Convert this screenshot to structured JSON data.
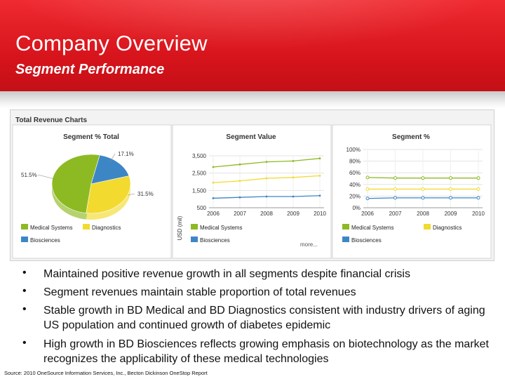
{
  "header": {
    "title": "Company Overview",
    "subtitle": "Segment Performance"
  },
  "panel": {
    "title": "Total Revenue Charts"
  },
  "colors": {
    "medical": "#8dba22",
    "diagnostics": "#f2da2e",
    "biosciences": "#3d86c6",
    "banner": "#d8141c"
  },
  "chart_data": [
    {
      "type": "pie",
      "title": "Segment % Total",
      "labels": [
        "Medical Systems",
        "Diagnostics",
        "Biosciences"
      ],
      "values": [
        51.5,
        31.5,
        17.1
      ],
      "value_labels": [
        "51.5%",
        "31.5%",
        "17.1%"
      ],
      "legend": [
        "Medical Systems",
        "Diagnostics",
        "Biosciences"
      ]
    },
    {
      "type": "line",
      "title": "Segment Value",
      "x": [
        "2006",
        "2007",
        "2008",
        "2009",
        "2010"
      ],
      "ylabel": "USD (mil)",
      "ylim": [
        500,
        3500
      ],
      "yticks": [
        "3,500",
        "2,500",
        "1,500",
        "500"
      ],
      "series": [
        {
          "name": "Medical Systems",
          "values": [
            2850,
            3000,
            3150,
            3200,
            3350
          ]
        },
        {
          "name": "Diagnostics",
          "values": [
            1950,
            2050,
            2200,
            2250,
            2350
          ]
        },
        {
          "name": "Biosciences",
          "values": [
            1050,
            1100,
            1150,
            1150,
            1200
          ]
        }
      ],
      "legend": [
        "Medical Systems",
        "Biosciences"
      ],
      "more": "more..."
    },
    {
      "type": "line",
      "title": "Segment %",
      "x": [
        "2006",
        "2007",
        "2008",
        "2009",
        "2010"
      ],
      "ylim": [
        0,
        100
      ],
      "yticks": [
        "100%",
        "80%",
        "60%",
        "40%",
        "20%",
        "0%"
      ],
      "series": [
        {
          "name": "Medical Systems",
          "values": [
            52,
            51,
            51,
            51,
            51
          ]
        },
        {
          "name": "Diagnostics",
          "values": [
            32,
            32,
            32,
            32,
            32
          ]
        },
        {
          "name": "Biosciences",
          "values": [
            16,
            17,
            17,
            17,
            17
          ]
        }
      ],
      "legend": [
        "Medical Systems",
        "Diagnostics",
        "Biosciences"
      ]
    }
  ],
  "bullets": [
    "Maintained positive revenue growth in all segments despite financial crisis",
    "Segment revenues maintain stable proportion of total revenues",
    "Stable growth in BD Medical and BD Diagnostics consistent with industry drivers of aging US population and continued growth of diabetes epidemic",
    "High growth in BD Biosciences reflects growing emphasis on biotechnology as the market recognizes the applicability of these medical technologies"
  ],
  "bullet_char": "•",
  "source": "Source: 2010 OneSource Information Services, Inc., Becton Dickinson OneStop Report"
}
